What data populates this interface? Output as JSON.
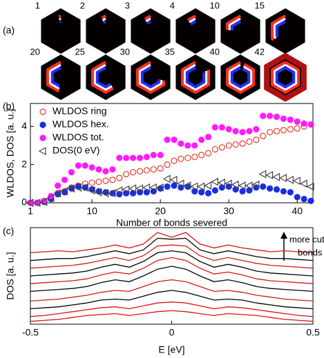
{
  "panel_a": {
    "label": "(a)",
    "hexagons": [
      1,
      2,
      3,
      4,
      10,
      15,
      20,
      25,
      30,
      35,
      40,
      42
    ],
    "max": 42
  },
  "chart_data": [
    {
      "type": "scatter",
      "label": "(b)",
      "xlabel": "Number of bonds severed",
      "ylabel": "WLDOS, DOS [a. u.]",
      "x": [
        1,
        2,
        3,
        4,
        5,
        6,
        7,
        8,
        9,
        10,
        11,
        12,
        13,
        14,
        15,
        16,
        17,
        18,
        19,
        20,
        21,
        22,
        23,
        24,
        25,
        26,
        27,
        28,
        29,
        30,
        31,
        32,
        33,
        34,
        35,
        36,
        37,
        38,
        39,
        40,
        41,
        42
      ],
      "xlim": [
        1,
        42.3
      ],
      "ylim": [
        0,
        5.2
      ],
      "xticks": [
        1,
        10,
        20,
        30,
        40
      ],
      "yticks": [
        0,
        2,
        4
      ],
      "legend": "upper left",
      "series": [
        {
          "name": "WLDOS ring",
          "color": "#e8372a",
          "marker": "open-circle",
          "values": [
            0,
            0,
            0.05,
            0.2,
            0.5,
            0.6,
            0.8,
            0.9,
            1.0,
            1.05,
            1.1,
            1.15,
            1.2,
            1.3,
            1.5,
            1.6,
            1.65,
            1.7,
            1.75,
            1.8,
            2.0,
            2.2,
            2.3,
            2.35,
            2.4,
            2.5,
            2.6,
            2.8,
            2.9,
            3.0,
            3.05,
            3.1,
            3.2,
            3.3,
            3.5,
            3.7,
            3.75,
            3.8,
            3.85,
            3.9,
            4.0,
            4.1
          ]
        },
        {
          "name": "WLDOS hex.",
          "color": "#1a2ee6",
          "marker": "filled-circle",
          "values": [
            0,
            0,
            0.05,
            0.2,
            0.45,
            0.55,
            0.75,
            0.85,
            0.8,
            0.7,
            0.6,
            0.55,
            0.5,
            0.45,
            0.5,
            0.5,
            0.55,
            0.55,
            0.6,
            0.75,
            0.85,
            0.9,
            0.8,
            0.85,
            0.6,
            0.55,
            0.5,
            0.65,
            0.8,
            0.85,
            0.7,
            0.6,
            0.65,
            0.8,
            0.85,
            0.75,
            0.7,
            0.6,
            0.55,
            0.3,
            0.2,
            0.1
          ]
        },
        {
          "name": "WLDOS tot.",
          "color": "#ff1aff",
          "marker": "filled-circle",
          "values": [
            0,
            0,
            0.1,
            0.35,
            0.9,
            1.2,
            1.6,
            1.95,
            1.95,
            1.85,
            1.75,
            1.65,
            1.75,
            2.35,
            2.35,
            2.35,
            2.35,
            2.4,
            2.5,
            2.5,
            3.3,
            3.3,
            3.1,
            3.0,
            3.0,
            3.3,
            3.45,
            3.95,
            3.95,
            3.85,
            3.75,
            3.7,
            3.75,
            3.85,
            4.55,
            4.55,
            4.5,
            4.4,
            4.35,
            4.25,
            4.15,
            4.1
          ]
        },
        {
          "name": "DOS(0 eV)",
          "color": "#444444",
          "marker": "open-triangle-left",
          "values": [
            0,
            0,
            0.05,
            0.25,
            0.5,
            0.6,
            0.75,
            0.8,
            0.8,
            0.65,
            0.55,
            0.5,
            0.5,
            0.65,
            0.7,
            0.75,
            0.75,
            0.8,
            0.8,
            0.8,
            1.25,
            1.2,
            1.0,
            0.9,
            0.85,
            0.85,
            0.9,
            1.1,
            1.05,
            1.0,
            0.95,
            0.9,
            0.9,
            0.95,
            1.5,
            1.45,
            1.35,
            1.3,
            1.2,
            1.15,
            1.0,
            0.85
          ]
        }
      ]
    },
    {
      "type": "line",
      "label": "(c)",
      "xlabel": "E [eV]",
      "ylabel": "DOS [a. u.]",
      "annotation": [
        "more cut",
        "bonds"
      ],
      "x": [
        -0.5,
        -0.45,
        -0.4,
        -0.35,
        -0.3,
        -0.25,
        -0.2,
        -0.15,
        -0.1,
        -0.05,
        0,
        0.05,
        0.1,
        0.15,
        0.2,
        0.25,
        0.3,
        0.35,
        0.4,
        0.45,
        0.5
      ],
      "xlim": [
        -0.5,
        0.5
      ],
      "ylim": [
        0,
        10
      ],
      "xticks": [
        -0.5,
        0,
        0.5
      ],
      "series": [
        {
          "color": "#dd1111",
          "values": [
            7.4,
            7.5,
            7.6,
            7.5,
            7.7,
            7.9,
            8.2,
            7.9,
            8.3,
            9.5,
            9.0,
            9.5,
            8.3,
            7.9,
            8.2,
            7.9,
            7.7,
            7.5,
            7.6,
            7.5,
            7.4
          ]
        },
        {
          "color": "#000000",
          "values": [
            6.6,
            6.7,
            6.8,
            6.8,
            7.0,
            7.3,
            7.6,
            7.3,
            7.7,
            8.9,
            8.8,
            8.9,
            7.7,
            7.3,
            7.6,
            7.3,
            7.0,
            6.8,
            6.8,
            6.7,
            6.6
          ]
        },
        {
          "color": "#dd1111",
          "values": [
            5.8,
            5.9,
            6.0,
            6.1,
            6.3,
            6.6,
            6.9,
            6.6,
            7.1,
            8.1,
            8.2,
            8.1,
            7.1,
            6.6,
            6.9,
            6.6,
            6.3,
            6.1,
            6.0,
            5.9,
            5.8
          ]
        },
        {
          "color": "#000000",
          "values": [
            5.0,
            5.1,
            5.2,
            5.3,
            5.5,
            5.9,
            6.2,
            5.9,
            6.5,
            7.4,
            7.6,
            7.4,
            6.5,
            5.9,
            6.2,
            5.9,
            5.5,
            5.3,
            5.2,
            5.1,
            5.0
          ]
        },
        {
          "color": "#dd1111",
          "values": [
            4.2,
            4.3,
            4.4,
            4.5,
            4.7,
            5.1,
            5.4,
            5.2,
            5.8,
            6.6,
            6.9,
            6.6,
            5.8,
            5.2,
            5.4,
            5.1,
            4.7,
            4.5,
            4.4,
            4.3,
            4.2
          ]
        },
        {
          "color": "#000000",
          "values": [
            3.4,
            3.5,
            3.6,
            3.7,
            3.9,
            4.3,
            4.6,
            4.4,
            5.0,
            5.7,
            6.0,
            5.7,
            5.0,
            4.4,
            4.6,
            4.3,
            3.9,
            3.7,
            3.6,
            3.5,
            3.4
          ]
        },
        {
          "color": "#dd1111",
          "values": [
            2.4,
            2.5,
            2.6,
            2.8,
            3.0,
            3.3,
            3.5,
            3.4,
            3.9,
            4.4,
            4.6,
            4.4,
            3.9,
            3.4,
            3.5,
            3.3,
            3.0,
            2.8,
            2.6,
            2.5,
            2.4
          ]
        },
        {
          "color": "#000000",
          "values": [
            1.6,
            1.7,
            1.8,
            2.0,
            2.2,
            2.5,
            2.6,
            2.5,
            2.9,
            3.3,
            3.5,
            3.3,
            2.9,
            2.5,
            2.6,
            2.5,
            2.2,
            2.0,
            1.8,
            1.7,
            1.6
          ]
        },
        {
          "color": "#dd1111",
          "values": [
            0.8,
            0.9,
            1.1,
            1.3,
            1.5,
            1.7,
            1.8,
            1.6,
            1.9,
            2.2,
            2.3,
            2.2,
            1.9,
            1.6,
            1.8,
            1.7,
            1.5,
            1.3,
            1.1,
            0.9,
            0.8
          ]
        },
        {
          "color": "#dd1111",
          "values": [
            0.3,
            0.4,
            0.5,
            0.7,
            0.9,
            1.0,
            1.1,
            0.9,
            1.1,
            1.3,
            1.4,
            1.3,
            1.1,
            0.9,
            1.1,
            1.0,
            0.9,
            0.7,
            0.5,
            0.4,
            0.3
          ]
        }
      ]
    }
  ]
}
